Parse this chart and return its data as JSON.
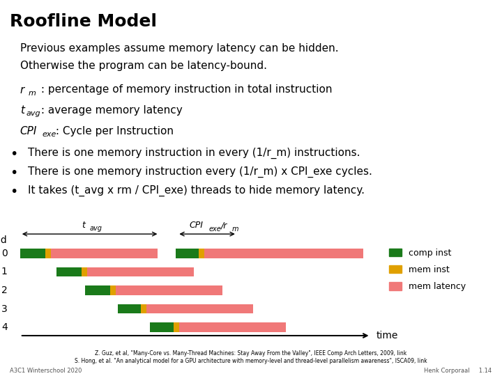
{
  "title": "Roofline Model",
  "bg_color": "#ffffff",
  "title_fontsize": 18,
  "body_fontsize": 11,
  "subtitle_line1": "Previous examples assume memory latency can be hidden.",
  "subtitle_line2": "Otherwise the program can be latency-bound.",
  "footer_ref1": "Z. Guz, et al, \"Many-Core vs. Many-Thread Machines: Stay Away From the Valley\", IEEE Comp Arch Letters, 2009, link",
  "footer_ref2": "S. Hong, et al. \"An analytical model for a GPU architecture with memory-level and thread-level parallelism awareness\", ISCA09, link",
  "footer_left": "A3C1 Winterschool 2020",
  "footer_right": "Henk Corporaal     1.14",
  "comp_color": "#1a7a1a",
  "mem_color": "#e0a000",
  "latency_color": "#f07878",
  "thread_data": [
    [
      0.0,
      0.07,
      0.015,
      0.295,
      0.05,
      0.065,
      0.015,
      0.44
    ],
    [
      0.1,
      0.07,
      0.015,
      0.295,
      0,
      0,
      0,
      0
    ],
    [
      0.18,
      0.07,
      0.015,
      0.295,
      0,
      0,
      0,
      0
    ],
    [
      0.27,
      0.065,
      0.015,
      0.295,
      0,
      0,
      0,
      0
    ],
    [
      0.36,
      0.065,
      0.015,
      0.295,
      0,
      0,
      0,
      0
    ]
  ],
  "thread_labels": [
    "0",
    "1",
    "2",
    "3",
    "4"
  ],
  "bullets": [
    "There is one memory instruction in every (1/r_m) instructions.",
    "There is one memory instruction every (1/r_m) x CPI_exe cycles.",
    "It takes (t_avg x rm / CPI_exe) threads to hide memory latency."
  ]
}
